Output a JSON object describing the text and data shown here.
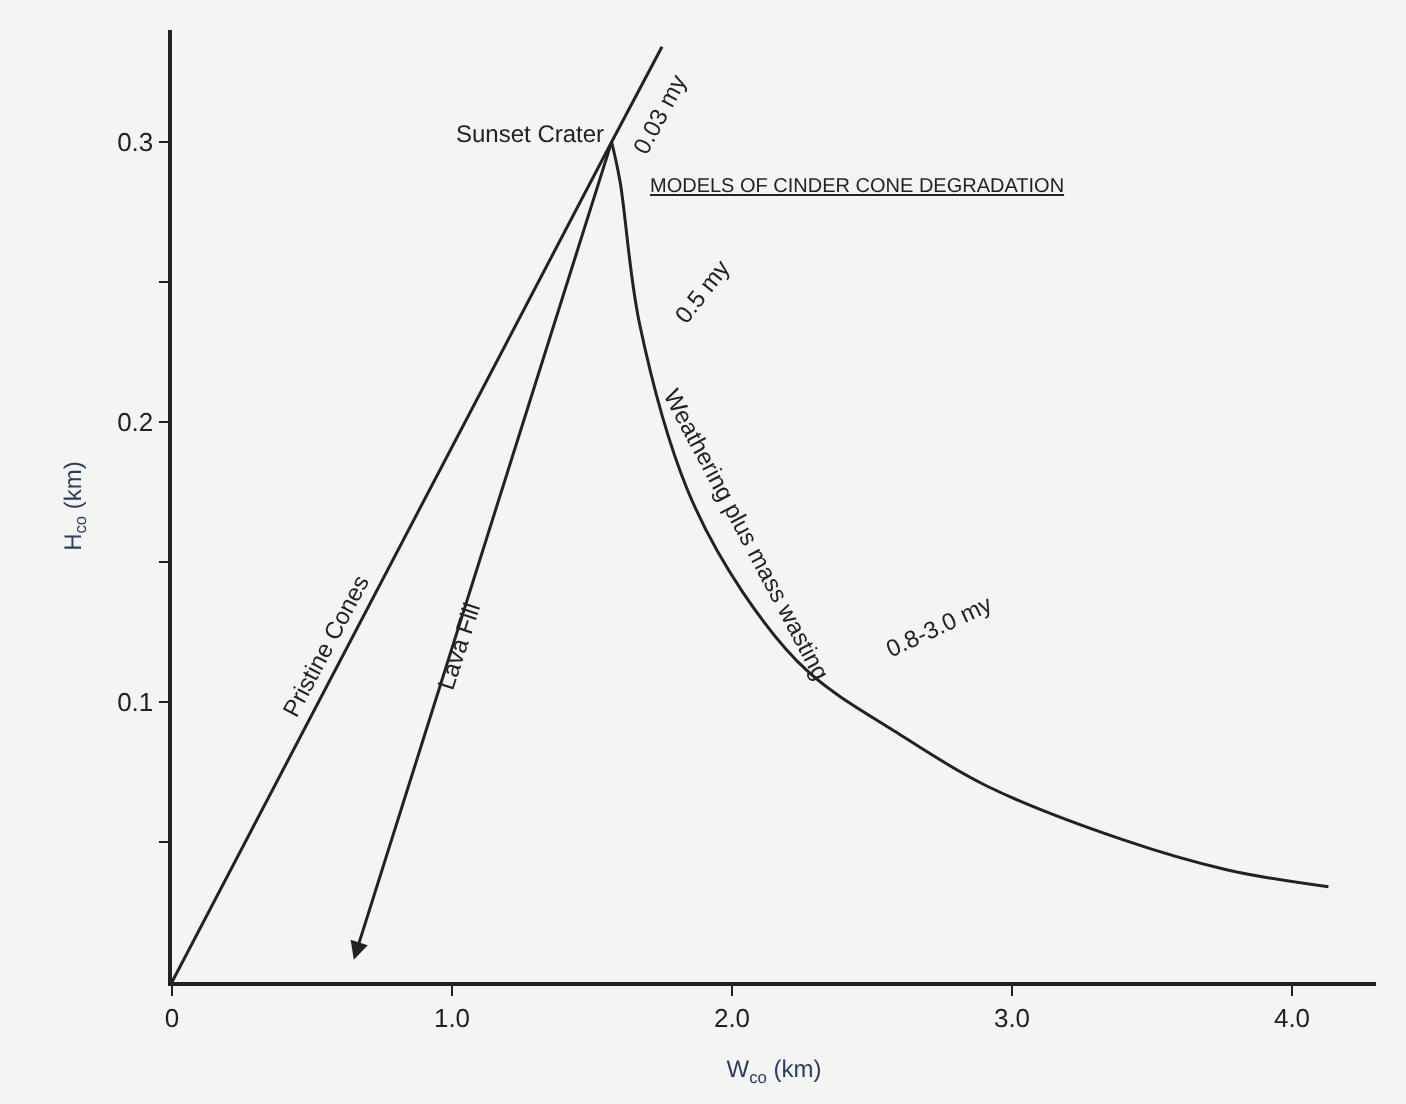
{
  "chart_data": {
    "type": "line",
    "title": "MODELS OF CINDER CONE DEGRADATION",
    "xlabel": "W$_{co}$ (km)",
    "ylabel": "H$_{co}$ (km)",
    "series": [
      {
        "name": "Pristine Cones",
        "color": "#222222",
        "x": [
          0,
          1.57,
          1.75
        ],
        "values": [
          0,
          0.3,
          0.334
        ]
      },
      {
        "name": "Weathering plus mass wasting",
        "color": "#222222",
        "x": [
          1.57,
          1.6,
          1.67,
          1.84,
          2.04,
          2.27,
          2.59,
          2.91,
          3.39,
          3.77,
          4.13
        ],
        "values": [
          0.3,
          0.286,
          0.235,
          0.176,
          0.139,
          0.111,
          0.089,
          0.07,
          0.051,
          0.04,
          0.034
        ]
      }
    ],
    "annotations": [
      "Sunset Crater",
      "0.03 my",
      "0.5 my",
      "0.8-3.0 my",
      "Lava Fill"
    ],
    "xlim": [
      0,
      4.3
    ],
    "ylim": [
      0,
      0.34
    ],
    "xticks": [
      {
        "value": 0,
        "label": "0"
      },
      {
        "value": 1,
        "label": "1.0"
      },
      {
        "value": 2,
        "label": "2.0"
      },
      {
        "value": 3,
        "label": "3.0"
      },
      {
        "value": 4,
        "label": "4.0"
      }
    ],
    "yticks": [
      {
        "value": 0.05,
        "label": null
      },
      0.1,
      {
        "value": 0.15,
        "label": null
      },
      0.2,
      {
        "value": 0.25,
        "label": null
      },
      0.3
    ],
    "grid": false,
    "marker": "none",
    "line_style": "solid"
  }
}
